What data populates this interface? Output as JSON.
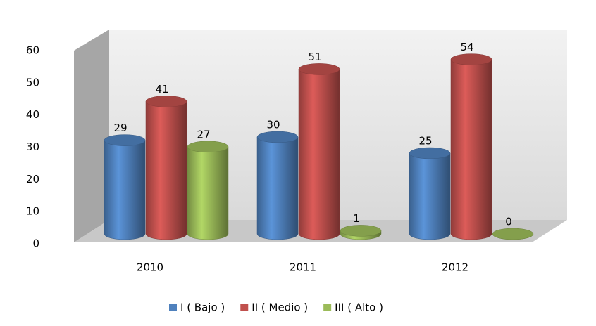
{
  "chart_data": {
    "type": "bar3d",
    "categories": [
      "2010",
      "2011",
      "2012"
    ],
    "series": [
      {
        "name": "I ( Bajo )",
        "color": "#4f81bd",
        "values": [
          29,
          30,
          25
        ]
      },
      {
        "name": "II ( Medio )",
        "color": "#c0504d",
        "values": [
          41,
          51,
          54
        ]
      },
      {
        "name": "III ( Alto )",
        "color": "#9bbb59",
        "values": [
          27,
          1,
          0
        ]
      }
    ],
    "ylim": [
      0,
      60
    ],
    "yticks": [
      0,
      10,
      20,
      30,
      40,
      50,
      60
    ],
    "legend": "bottom"
  }
}
